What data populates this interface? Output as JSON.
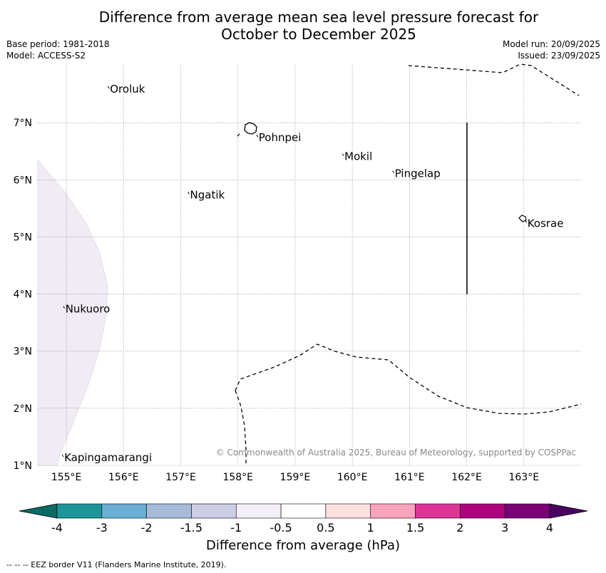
{
  "title_line1": "Difference from average mean sea level pressure forecast for",
  "title_line2": "October to December 2025",
  "base_period": "Base period: 1981-2018",
  "model": "Model: ACCESS-S2",
  "model_run": "Model run: 20/09/2025",
  "issued": "Issued: 23/09/2025",
  "copyright": "© Commonwealth of Australia 2025, Bureau of Meteorology, supported by COSPPac",
  "colorbar_title": "Difference from average (hPa)",
  "footnote": "--  --  -- EEZ border V11 (Flanders Marine Institute, 2019).",
  "axes": {
    "lon_ticks": [
      "155°E",
      "156°E",
      "157°E",
      "158°E",
      "159°E",
      "160°E",
      "161°E",
      "162°E",
      "163°E"
    ],
    "lat_ticks": [
      "7°N",
      "6°N",
      "5°N",
      "4°N",
      "3°N",
      "2°N",
      "1°N"
    ]
  },
  "places": [
    {
      "name": "Oroluk",
      "lon": 155.75,
      "lat": 7.6
    },
    {
      "name": "Pohnpei",
      "lon": 158.35,
      "lat": 6.75
    },
    {
      "name": "Mokil",
      "lon": 159.85,
      "lat": 6.42
    },
    {
      "name": "Pingelap",
      "lon": 160.73,
      "lat": 6.12
    },
    {
      "name": "Ngatik",
      "lon": 157.15,
      "lat": 5.75
    },
    {
      "name": "Kosrae",
      "lon": 163.05,
      "lat": 5.25
    },
    {
      "name": "Nukuoro",
      "lon": 154.97,
      "lat": 3.75
    },
    {
      "name": "Kapingamarangi",
      "lon": 154.95,
      "lat": 1.15
    }
  ],
  "colorbar": {
    "labels": [
      "-4",
      "-3",
      "-2",
      "-1.5",
      "-1",
      "-0.5",
      "0.5",
      "1",
      "1.5",
      "2",
      "3",
      "4"
    ],
    "colors": [
      "#1e9599",
      "#6aadd5",
      "#a7bcdb",
      "#cdcde5",
      "#f3eff6",
      "#ffffff",
      "#fde0e0",
      "#f9a3bd",
      "#dd3597",
      "#ad017e",
      "#7a0177"
    ],
    "under_color": "#0b6b63",
    "over_color": "#4a0060"
  },
  "fill_color": "#f1ecf4"
}
